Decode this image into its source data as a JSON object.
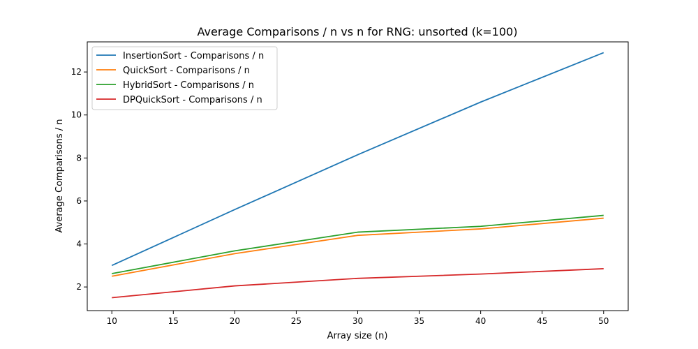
{
  "chart_data": {
    "type": "line",
    "title": "Average Comparisons / n vs n for RNG: unsorted (k=100)",
    "xlabel": "Array size (n)",
    "ylabel": "Average Comparisons / n",
    "x": [
      10,
      20,
      30,
      40,
      50
    ],
    "xlim": [
      8,
      52
    ],
    "ylim": [
      0.9,
      13.4
    ],
    "xticks": [
      10,
      15,
      20,
      25,
      30,
      35,
      40,
      45,
      50
    ],
    "yticks": [
      2,
      4,
      6,
      8,
      10,
      12
    ],
    "grid": false,
    "legend_position": "top-left",
    "series": [
      {
        "name": "InsertionSort - Comparisons / n",
        "color": "#1f77b4",
        "values": [
          3.0,
          5.6,
          8.15,
          10.6,
          12.9
        ]
      },
      {
        "name": "QuickSort - Comparisons / n",
        "color": "#ff7f0e",
        "values": [
          2.5,
          3.55,
          4.4,
          4.7,
          5.2
        ]
      },
      {
        "name": "HybridSort - Comparisons / n",
        "color": "#2ca02c",
        "values": [
          2.62,
          3.68,
          4.55,
          4.82,
          5.33
        ]
      },
      {
        "name": "DPQuickSort - Comparisons / n",
        "color": "#d62728",
        "values": [
          1.5,
          2.05,
          2.4,
          2.6,
          2.85
        ]
      }
    ]
  }
}
